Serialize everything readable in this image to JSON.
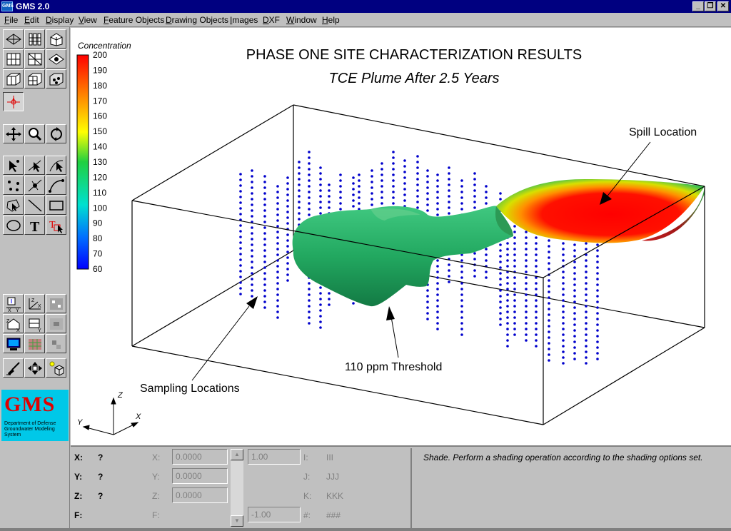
{
  "window": {
    "title": "GMS 2.0",
    "icon_label": "GMS",
    "minimize": "_",
    "maximize": "❐",
    "close": "✕"
  },
  "menu": [
    "File",
    "Edit",
    "Display",
    "View",
    "Feature Objects",
    "Drawing Objects",
    "Images",
    "DXF",
    "Window",
    "Help"
  ],
  "logo": {
    "text": "GMS",
    "subtitle": "Department of Defense Groundwater Modeling System"
  },
  "plot": {
    "title": "PHASE ONE SITE CHARACTERIZATION RESULTS",
    "subtitle": "TCE Plume After 2.5 Years",
    "annotations": {
      "spill": "Spill Location",
      "threshold": "110 ppm Threshold",
      "sampling": "Sampling Locations"
    },
    "axes": {
      "z": "Z",
      "y": "Y",
      "x": "X"
    }
  },
  "legend": {
    "title": "Concentration",
    "ticks": [
      "200",
      "190",
      "180",
      "170",
      "160",
      "150",
      "140",
      "130",
      "120",
      "110",
      "100",
      "90",
      "80",
      "70",
      "60"
    ],
    "colors": {
      "top": "#ff0000",
      "upper": "#ffff00",
      "mid": "#00d060",
      "lower": "#00e0ff",
      "bottom": "#0000ff"
    }
  },
  "status": {
    "x_label": "X:",
    "x_value": "?",
    "y_label": "Y:",
    "y_value": "?",
    "z_label": "Z:",
    "z_value": "?",
    "f_label": "F:",
    "x2_label": "X:",
    "x2_value": "0.0000",
    "y2_label": "Y:",
    "y2_value": "0.0000",
    "z2_label": "Z:",
    "z2_value": "0.0000",
    "f2_label": "F:",
    "upper_value": "1.00",
    "lower_value": "-1.00",
    "i_label": "I:",
    "i_value": "III",
    "j_label": "J:",
    "j_value": "JJJ",
    "k_label": "K:",
    "k_value": "KKK",
    "n_label": "#:",
    "n_value": "###",
    "message": "Shade.  Perform a shading operation according to the shading options set."
  },
  "colors": {
    "plume_green": "#22a860",
    "sample_dots": "#0000cc",
    "title_bar": "#000080"
  }
}
